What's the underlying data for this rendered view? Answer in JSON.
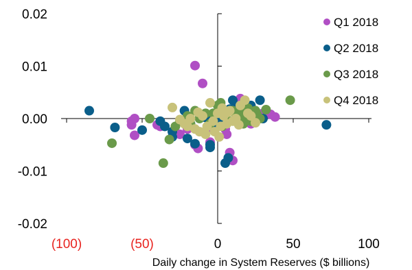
{
  "chart_data": {
    "type": "scatter",
    "xlabel": "Daily change in System Reserves ($ billions)",
    "xlim": [
      -100,
      100
    ],
    "ylim": [
      -0.02,
      0.02
    ],
    "x_ticks": [
      {
        "value": -100,
        "label": "(100)",
        "color": "#e8231f"
      },
      {
        "value": -50,
        "label": "(50)",
        "color": "#e8231f"
      },
      {
        "value": 0,
        "label": "0",
        "color": "#000000"
      },
      {
        "value": 50,
        "label": "50",
        "color": "#000000"
      },
      {
        "value": 100,
        "label": "100",
        "color": "#000000"
      }
    ],
    "y_ticks": [
      {
        "value": 0.02,
        "label": "0.02"
      },
      {
        "value": 0.01,
        "label": "0.01"
      },
      {
        "value": 0.0,
        "label": "0.00"
      },
      {
        "value": -0.01,
        "label": "-0.01"
      },
      {
        "value": -0.02,
        "label": "-0.02"
      }
    ],
    "legend_position": "top-right",
    "grid": false,
    "series": [
      {
        "name": "Q1 2018",
        "color": "#b04fc4",
        "points": [
          [
            -15,
            0.0101
          ],
          [
            -10,
            0.0067
          ],
          [
            -57,
            -0.0005
          ],
          [
            -55,
            0.0
          ],
          [
            -57,
            -0.0012
          ],
          [
            -55,
            -0.0032
          ],
          [
            -40,
            -0.0012
          ],
          [
            -38,
            -0.0015
          ],
          [
            -20,
            -0.002
          ],
          [
            -15,
            -0.005
          ],
          [
            -13,
            -0.0057
          ],
          [
            -5,
            -0.0045
          ],
          [
            -3,
            -0.0008
          ],
          [
            0,
            -0.0015
          ],
          [
            3,
            0.001
          ],
          [
            5,
            -0.002
          ],
          [
            8,
            -0.0065
          ],
          [
            10,
            -0.008
          ],
          [
            15,
            0.0038
          ],
          [
            18,
            0.003
          ],
          [
            20,
            0.001
          ],
          [
            25,
            0.0005
          ],
          [
            30,
            0.001
          ],
          [
            35,
            0.0008
          ],
          [
            38,
            0.0003
          ],
          [
            12,
            0.0015
          ],
          [
            22,
            -0.001
          ],
          [
            -25,
            -0.003
          ],
          [
            -8,
            -0.0025
          ],
          [
            6,
            -0.003
          ]
        ]
      },
      {
        "name": "Q2 2018",
        "color": "#0a5e8a",
        "points": [
          [
            -85,
            0.0015
          ],
          [
            -68,
            -0.0017
          ],
          [
            -50,
            -0.0022
          ],
          [
            -38,
            -0.0005
          ],
          [
            -35,
            -0.0015
          ],
          [
            -30,
            -0.0025
          ],
          [
            -30,
            -0.0035
          ],
          [
            -22,
            0.0015
          ],
          [
            -20,
            -0.0038
          ],
          [
            -15,
            -0.0048
          ],
          [
            -8,
            0.0002
          ],
          [
            -5,
            -0.005
          ],
          [
            -5,
            -0.0055
          ],
          [
            -2,
            -0.002
          ],
          [
            2,
            -0.001
          ],
          [
            5,
            -0.0085
          ],
          [
            7,
            -0.0075
          ],
          [
            10,
            0.0035
          ],
          [
            12,
            0.002
          ],
          [
            15,
            0.0012
          ],
          [
            18,
            -0.0005
          ],
          [
            22,
            0.0025
          ],
          [
            25,
            -0.0005
          ],
          [
            28,
            0.0035
          ],
          [
            30,
            0.0
          ],
          [
            72,
            -0.0012
          ],
          [
            -12,
            0.0008
          ],
          [
            0,
            0.0005
          ],
          [
            -18,
            -0.001
          ],
          [
            8,
            0.0018
          ]
        ]
      },
      {
        "name": "Q3 2018",
        "color": "#6a9a4a",
        "points": [
          [
            -70,
            -0.0047
          ],
          [
            -45,
            0.0
          ],
          [
            -36,
            -0.0085
          ],
          [
            -32,
            -0.004
          ],
          [
            -28,
            -0.0015
          ],
          [
            -25,
            -0.0005
          ],
          [
            -18,
            -0.001
          ],
          [
            -12,
            0.0
          ],
          [
            -8,
            0.001
          ],
          [
            -5,
            -0.001
          ],
          [
            0,
            0.0025
          ],
          [
            2,
            0.003
          ],
          [
            5,
            0.0005
          ],
          [
            8,
            -0.0005
          ],
          [
            10,
            0.0015
          ],
          [
            15,
            0.001
          ],
          [
            18,
            0.0
          ],
          [
            20,
            0.002
          ],
          [
            22,
            -0.0005
          ],
          [
            25,
            0.0015
          ],
          [
            28,
            0.0
          ],
          [
            32,
            0.0017
          ],
          [
            48,
            0.0035
          ],
          [
            -20,
            0.0005
          ],
          [
            12,
            0.0008
          ],
          [
            -3,
            0.001
          ],
          [
            3,
            -0.0015
          ],
          [
            -15,
            0.0015
          ],
          [
            17,
            -0.001
          ],
          [
            26,
            0.0008
          ]
        ]
      },
      {
        "name": "Q4 2018",
        "color": "#c8c27a",
        "points": [
          [
            -30,
            0.0021
          ],
          [
            -25,
            -0.0002
          ],
          [
            -22,
            -0.001
          ],
          [
            -20,
            -0.0015
          ],
          [
            -18,
            0.0
          ],
          [
            -15,
            -0.002
          ],
          [
            -12,
            -0.0025
          ],
          [
            -10,
            0.0005
          ],
          [
            -8,
            -0.003
          ],
          [
            -5,
            0.003
          ],
          [
            -3,
            -0.0005
          ],
          [
            0,
            0.001
          ],
          [
            2,
            -0.0015
          ],
          [
            4,
            0.0005
          ],
          [
            6,
            -0.001
          ],
          [
            8,
            0.0015
          ],
          [
            10,
            -0.0005
          ],
          [
            12,
            0.0
          ],
          [
            15,
            0.0025
          ],
          [
            18,
            0.0035
          ],
          [
            20,
            0.001
          ],
          [
            22,
            0.0005
          ],
          [
            25,
            -0.0008
          ],
          [
            -7,
            -0.0015
          ],
          [
            3,
            0.002
          ],
          [
            -2,
            -0.0025
          ],
          [
            7,
            0.0012
          ],
          [
            14,
            -0.0012
          ],
          [
            -13,
            0.0012
          ],
          [
            1,
            -0.0035
          ]
        ]
      }
    ]
  }
}
